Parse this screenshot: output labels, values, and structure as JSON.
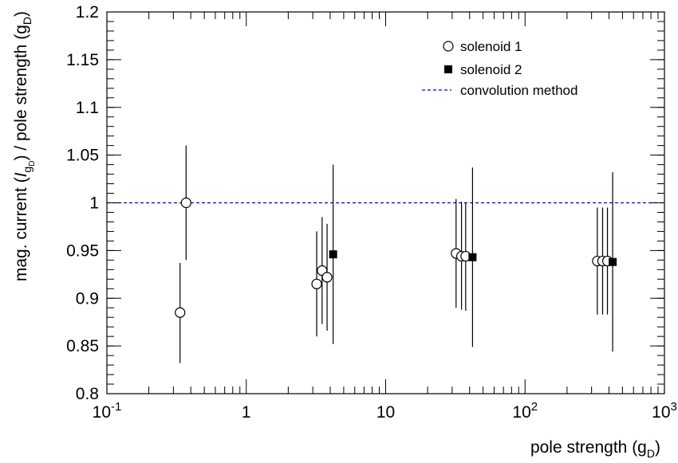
{
  "chart_data": {
    "type": "scatter",
    "title": "",
    "x_scale": "log",
    "xlim": [
      0.1,
      1000
    ],
    "ylim": [
      0.8,
      1.2
    ],
    "xlabel": "pole strength (g_D)",
    "ylabel": "mag. current (I_gD) / pole strength (g_D)",
    "x_ticks": [
      {
        "value": 0.1,
        "label": "10",
        "exp": "-1"
      },
      {
        "value": 1,
        "label": "1",
        "exp": ""
      },
      {
        "value": 10,
        "label": "10",
        "exp": ""
      },
      {
        "value": 100,
        "label": "10",
        "exp": "2"
      },
      {
        "value": 1000,
        "label": "10",
        "exp": "3"
      }
    ],
    "y_ticks": [
      {
        "value": 0.8,
        "label": "0.8"
      },
      {
        "value": 0.85,
        "label": "0.85"
      },
      {
        "value": 0.9,
        "label": "0.9"
      },
      {
        "value": 0.95,
        "label": "0.95"
      },
      {
        "value": 1.0,
        "label": "1"
      },
      {
        "value": 1.05,
        "label": "1.05"
      },
      {
        "value": 1.1,
        "label": "1.1"
      },
      {
        "value": 1.15,
        "label": "1.15"
      },
      {
        "value": 1.2,
        "label": "1.2"
      }
    ],
    "grid": false,
    "legend_position": "top-right",
    "series": [
      {
        "name": "solenoid 1",
        "marker": "open-circle",
        "color": "#000000",
        "points": [
          {
            "x": 0.335,
            "y": 0.885,
            "ylow": 0.832,
            "yhigh": 0.937
          },
          {
            "x": 0.37,
            "y": 1.0,
            "ylow": 0.94,
            "yhigh": 1.06
          },
          {
            "x": 3.2,
            "y": 0.915,
            "ylow": 0.86,
            "yhigh": 0.97
          },
          {
            "x": 3.5,
            "y": 0.929,
            "ylow": 0.873,
            "yhigh": 0.985
          },
          {
            "x": 3.8,
            "y": 0.922,
            "ylow": 0.866,
            "yhigh": 0.978
          },
          {
            "x": 32,
            "y": 0.947,
            "ylow": 0.89,
            "yhigh": 1.004
          },
          {
            "x": 35,
            "y": 0.944,
            "ylow": 0.888,
            "yhigh": 1.001
          },
          {
            "x": 37.5,
            "y": 0.944,
            "ylow": 0.887,
            "yhigh": 1.0
          },
          {
            "x": 330,
            "y": 0.939,
            "ylow": 0.883,
            "yhigh": 0.995
          },
          {
            "x": 360,
            "y": 0.939,
            "ylow": 0.883,
            "yhigh": 0.995
          },
          {
            "x": 390,
            "y": 0.939,
            "ylow": 0.883,
            "yhigh": 0.995
          }
        ]
      },
      {
        "name": "solenoid 2",
        "marker": "filled-square",
        "color": "#000000",
        "points": [
          {
            "x": 4.2,
            "y": 0.946,
            "ylow": 0.852,
            "yhigh": 1.04
          },
          {
            "x": 42,
            "y": 0.943,
            "ylow": 0.849,
            "yhigh": 1.037
          },
          {
            "x": 425,
            "y": 0.938,
            "ylow": 0.844,
            "yhigh": 1.032
          }
        ]
      }
    ],
    "reference_lines": [
      {
        "name": "convolution method",
        "y": 1.0,
        "color": "#0000cc",
        "style": "dashed"
      }
    ]
  }
}
